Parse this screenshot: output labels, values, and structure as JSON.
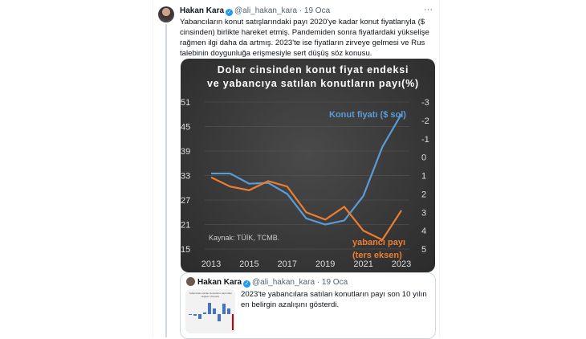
{
  "tweet": {
    "name": "Hakan Kara",
    "handle": "@ali_hakan_kara",
    "date": "19 Oca",
    "more": "···",
    "text": "Yabancıların konut satışlarındaki payı 2020'ye kadar konut fiyatlarıyla ($ cinsinden) birlikte hareket etmiş. Pandemiden sonra fiyatlardaki yükselişe rağmen ilgi daha da artmış. 2023'te ise fiyatların zirveye gelmesi ve Rus talebinin doygunluğa erişmesiyle sert düşüş söz konusu."
  },
  "quote": {
    "name": "Hakan Kara",
    "handle": "@ali_hakan_kara",
    "date": "19 Oca",
    "text": "2023'te yabancılara satılan konutların payı son 10 yılın en belirgin azalışını gösterdi.",
    "thumb_title": "Yabancılara satılan konutların payındaki değişim (%puan)"
  },
  "chart_data": {
    "type": "line",
    "title": "Dolar cinsinden konut fiyat endeksi ve yabancıya satılan konutların payı(%)",
    "source": "Kaynak: TÜİK, TCMB.",
    "x": [
      2013,
      2014,
      2015,
      2016,
      2017,
      2018,
      2019,
      2020,
      2021,
      2022,
      2023
    ],
    "x_ticks": [
      "2013",
      "2015",
      "2017",
      "2019",
      "2021",
      "2023"
    ],
    "y_left": {
      "ticks": [
        "51",
        "45",
        "39",
        "33",
        "27",
        "21",
        "15"
      ],
      "range": [
        15,
        51
      ]
    },
    "y_right": {
      "ticks": [
        "-3",
        "-2",
        "-1",
        "0",
        "1",
        "2",
        "3",
        "4",
        "5"
      ],
      "range": [
        -3,
        5
      ],
      "inverted": true
    },
    "grid": true,
    "series": [
      {
        "name": "Konut fiyatı ($ sol)",
        "axis": "left",
        "color": "#5b9bd5",
        "values": [
          33.5,
          33.5,
          31,
          31.2,
          28.5,
          22.5,
          21,
          22,
          28,
          40,
          48
        ]
      },
      {
        "name": "yabancı payı (ters eksen)",
        "axis": "right",
        "color": "#ed7d31",
        "values": [
          1.1,
          1.6,
          1.8,
          1.3,
          1.6,
          3.0,
          3.4,
          2.7,
          4.0,
          4.5,
          2.9
        ]
      }
    ],
    "labels": {
      "blue": "Konut fiyatı ($ sol)",
      "orange1": "yabancı payı",
      "orange2": "(ters eksen)"
    }
  }
}
